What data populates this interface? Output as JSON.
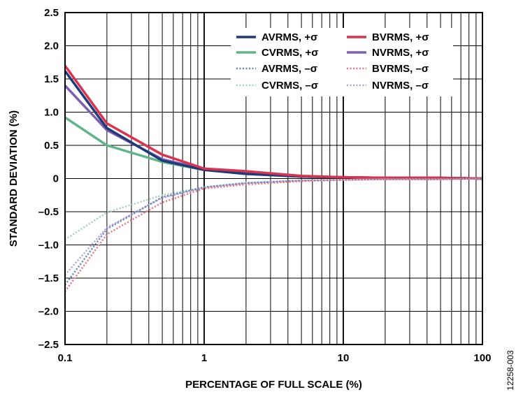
{
  "figure_id": "12258-003",
  "chart_data": {
    "type": "line",
    "xlabel": "PERCENTAGE OF FULL SCALE (%)",
    "ylabel": "STANDARD DEVIATION (%)",
    "x_scale": "log",
    "xlim": [
      0.1,
      100
    ],
    "ylim": [
      -2.5,
      2.5
    ],
    "x_ticks": [
      {
        "value": 0.1,
        "label": "0.1"
      },
      {
        "value": 1,
        "label": "1"
      },
      {
        "value": 10,
        "label": "10"
      },
      {
        "value": 100,
        "label": "100"
      }
    ],
    "y_ticks": [
      {
        "value": 2.5,
        "label": "2.5"
      },
      {
        "value": 2.0,
        "label": "2.0"
      },
      {
        "value": 1.5,
        "label": "1.5"
      },
      {
        "value": 1.0,
        "label": "1.0"
      },
      {
        "value": 0.5,
        "label": "0.5"
      },
      {
        "value": 0,
        "label": "0"
      },
      {
        "value": -0.5,
        "label": "–0.5"
      },
      {
        "value": -1.0,
        "label": "–1.0"
      },
      {
        "value": -1.5,
        "label": "–1.5"
      },
      {
        "value": -2.0,
        "label": "–2.0"
      },
      {
        "value": -2.5,
        "label": "–2.5"
      }
    ],
    "grid": true,
    "legend_position": "top-right",
    "x": [
      0.1,
      0.2,
      0.5,
      1,
      2,
      5,
      10,
      20,
      50,
      100
    ],
    "series": [
      {
        "name": "AVRMS, +σ",
        "color": "#1f3a7a",
        "style": "solid",
        "values": [
          1.62,
          0.76,
          0.27,
          0.13,
          0.07,
          0.03,
          0.02,
          0.01,
          0.01,
          0.0
        ]
      },
      {
        "name": "BVRMS, +σ",
        "color": "#d9334f",
        "style": "solid",
        "values": [
          1.7,
          0.83,
          0.36,
          0.15,
          0.11,
          0.04,
          0.02,
          0.01,
          0.01,
          0.0
        ]
      },
      {
        "name": "CVRMS, +σ",
        "color": "#5fb58a",
        "style": "solid",
        "values": [
          0.92,
          0.5,
          0.25,
          0.13,
          0.07,
          0.03,
          0.02,
          0.01,
          0.01,
          0.0
        ]
      },
      {
        "name": "NVRMS, +σ",
        "color": "#7b5fb0",
        "style": "solid",
        "values": [
          1.4,
          0.73,
          0.29,
          0.14,
          0.08,
          0.03,
          0.02,
          0.01,
          0.01,
          0.0
        ]
      },
      {
        "name": "AVRMS, –σ",
        "color": "#6a82b8",
        "style": "dotted",
        "values": [
          -1.6,
          -0.76,
          -0.28,
          -0.13,
          -0.07,
          -0.03,
          -0.02,
          -0.01,
          -0.01,
          0.0
        ]
      },
      {
        "name": "BVRMS, –σ",
        "color": "#e87784",
        "style": "dotted",
        "values": [
          -1.7,
          -0.84,
          -0.36,
          -0.15,
          -0.09,
          -0.04,
          -0.02,
          -0.01,
          -0.01,
          0.0
        ]
      },
      {
        "name": "CVRMS, –σ",
        "color": "#9fd4b6",
        "style": "dotted",
        "values": [
          -0.92,
          -0.51,
          -0.25,
          -0.13,
          -0.06,
          -0.03,
          -0.02,
          -0.01,
          -0.01,
          0.0
        ]
      },
      {
        "name": "NVRMS, –σ",
        "color": "#b1a0d8",
        "style": "dotted",
        "values": [
          -1.45,
          -0.74,
          -0.29,
          -0.14,
          -0.07,
          -0.03,
          -0.02,
          -0.01,
          -0.01,
          0.0
        ]
      }
    ]
  }
}
